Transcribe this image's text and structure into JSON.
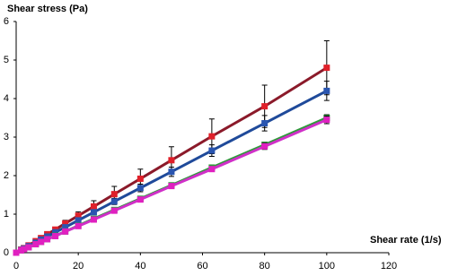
{
  "chart_data": {
    "type": "line",
    "ylabel": "Shear stress  (Pa)",
    "xlabel": "Shear rate (1/s)",
    "x": [
      0,
      1.6,
      2.5,
      4,
      6.3,
      8,
      10,
      12.6,
      15.8,
      20,
      25,
      31.6,
      40,
      50,
      63,
      80,
      100
    ],
    "series": [
      {
        "color": "#e0202a",
        "line_color": "#8b1a2a",
        "values": [
          0,
          0.08,
          0.12,
          0.19,
          0.3,
          0.38,
          0.48,
          0.6,
          0.76,
          0.96,
          1.2,
          1.52,
          1.92,
          2.4,
          3.02,
          3.8,
          4.8
        ],
        "errors": [
          0,
          0.01,
          0.01,
          0.02,
          0.03,
          0.04,
          0.05,
          0.06,
          0.08,
          0.1,
          0.15,
          0.2,
          0.25,
          0.35,
          0.45,
          0.55,
          0.7
        ]
      },
      {
        "color": "#2a55b0",
        "line_color": "#1f4a9a",
        "values": [
          0,
          0.07,
          0.11,
          0.17,
          0.26,
          0.34,
          0.42,
          0.53,
          0.66,
          0.84,
          1.05,
          1.33,
          1.68,
          2.1,
          2.65,
          3.36,
          4.2
        ],
        "errors": [
          0,
          0,
          0.01,
          0.01,
          0.02,
          0.02,
          0.03,
          0.03,
          0.04,
          0.05,
          0.06,
          0.08,
          0.1,
          0.12,
          0.15,
          0.2,
          0.25
        ]
      },
      {
        "color": "#2e9a3a",
        "line_color": "#2e9a3a",
        "values": [
          0,
          0.06,
          0.09,
          0.14,
          0.22,
          0.28,
          0.35,
          0.44,
          0.55,
          0.7,
          0.88,
          1.11,
          1.4,
          1.75,
          2.21,
          2.8,
          3.5
        ],
        "errors": [
          0,
          0,
          0,
          0.01,
          0.01,
          0.01,
          0.02,
          0.02,
          0.02,
          0.03,
          0.03,
          0.04,
          0.04,
          0.05,
          0.06,
          0.07,
          0.08
        ]
      },
      {
        "color": "#e020c0",
        "line_color": "#d030c8",
        "values": [
          0,
          0.06,
          0.09,
          0.14,
          0.22,
          0.28,
          0.35,
          0.43,
          0.55,
          0.69,
          0.86,
          1.09,
          1.38,
          1.73,
          2.17,
          2.76,
          3.45
        ],
        "errors": [
          0,
          0,
          0,
          0.01,
          0.01,
          0.01,
          0.02,
          0.02,
          0.02,
          0.03,
          0.03,
          0.04,
          0.05,
          0.05,
          0.06,
          0.08,
          0.1
        ]
      }
    ],
    "xlim": [
      0,
      120
    ],
    "xticks": [
      0,
      20,
      40,
      60,
      80,
      100,
      120
    ],
    "ylim": [
      0,
      6
    ],
    "yticks": [
      0,
      1,
      2,
      3,
      4,
      5,
      6
    ],
    "grid": false
  }
}
